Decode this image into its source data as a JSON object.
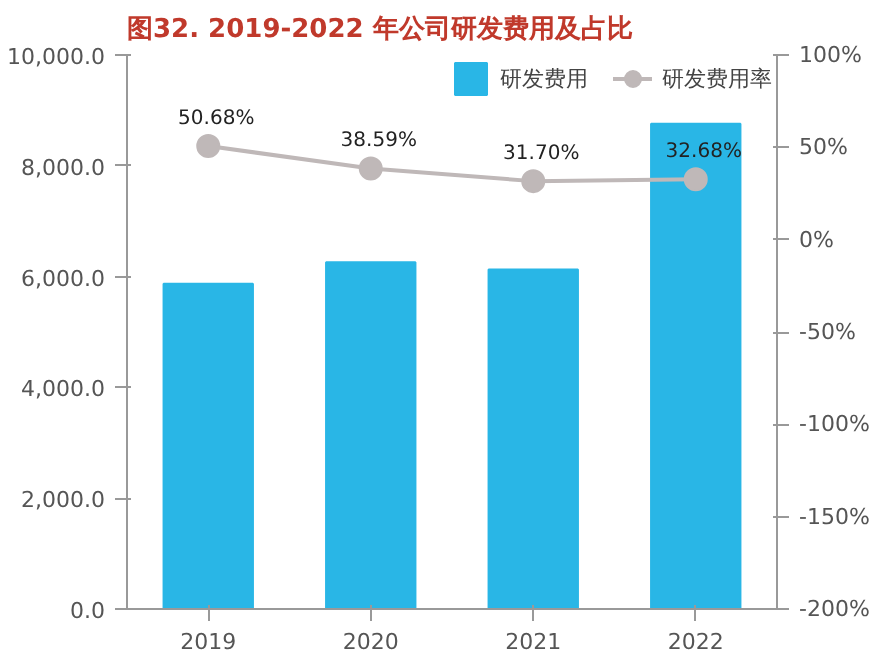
{
  "chart_data": {
    "type": "bar",
    "title": "图32. 2019-2022 年公司研发费用及占比",
    "categories": [
      "2019",
      "2020",
      "2021",
      "2022"
    ],
    "series": [
      {
        "name": "研发费用",
        "color": "#29b6e6",
        "values": [
          5870,
          6260,
          6130,
          8760
        ]
      },
      {
        "name": "研发费用率",
        "type": "line",
        "axis": "y2",
        "color": "#bfb8b8",
        "marker": "circle",
        "values": [
          50.68,
          38.59,
          31.7,
          32.68
        ],
        "value_labels": [
          "50.68%",
          "38.59%",
          "31.70%",
          "32.68%"
        ]
      }
    ],
    "ylim": [
      0,
      10000
    ],
    "yticks": [
      {
        "value": 0,
        "label": "0.0"
      },
      {
        "value": 2000,
        "label": "2,000.0"
      },
      {
        "value": 4000,
        "label": "4,000.0"
      },
      {
        "value": 6000,
        "label": "6,000.0"
      },
      {
        "value": 8000,
        "label": "8,000.0"
      },
      {
        "value": 10000,
        "label": "10,000.0"
      }
    ],
    "y2lim": [
      -200,
      100
    ],
    "y2ticks": [
      {
        "value": -200,
        "label": "-200%"
      },
      {
        "value": -150,
        "label": "-150%"
      },
      {
        "value": -100,
        "label": "-100%"
      },
      {
        "value": -50,
        "label": "-50%"
      },
      {
        "value": 0,
        "label": "0%"
      },
      {
        "value": 50,
        "label": "50%"
      },
      {
        "value": 100,
        "label": "100%"
      }
    ],
    "grid": false,
    "legend": "top right"
  }
}
